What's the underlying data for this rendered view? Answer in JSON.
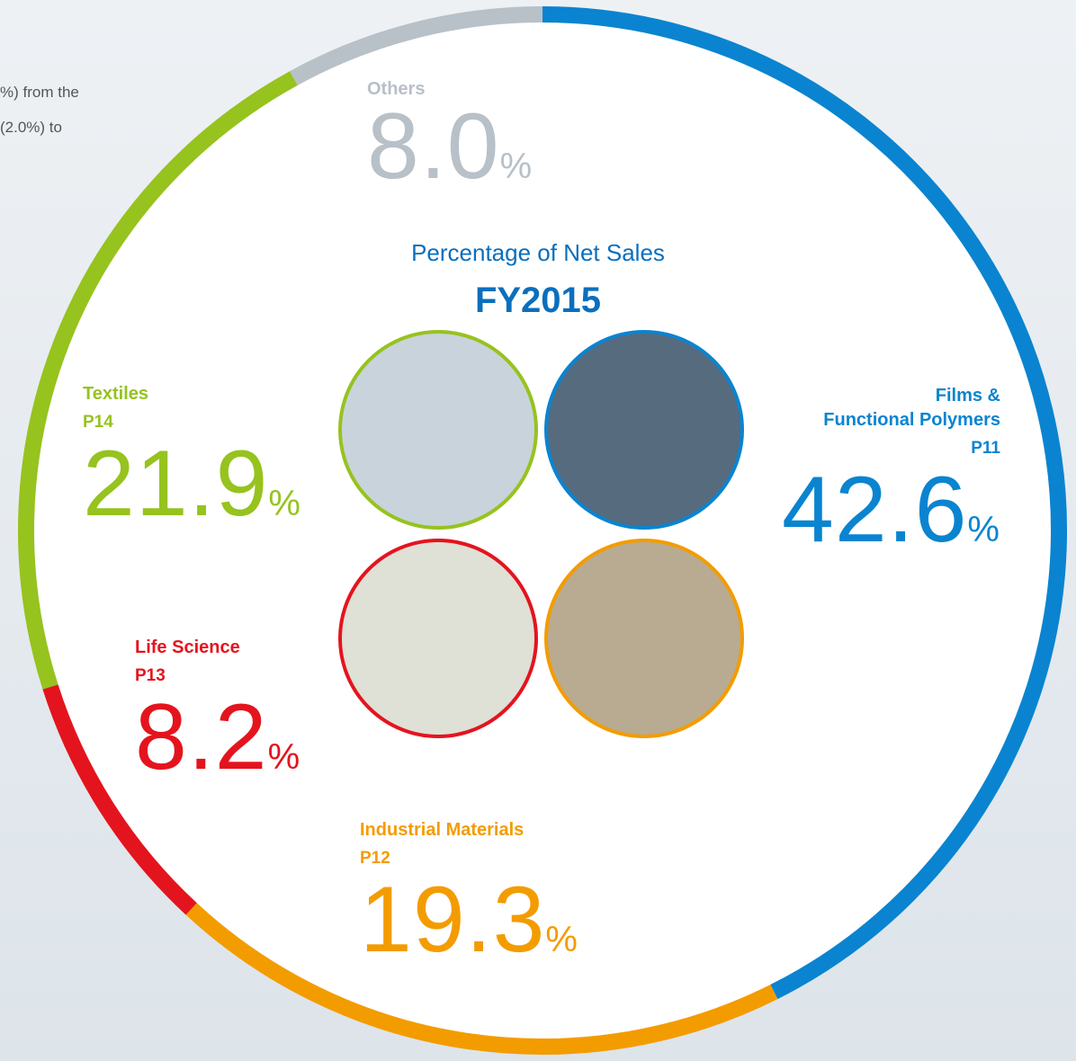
{
  "page_text": [
    "%) from the",
    "(2.0%) to"
  ],
  "chart_data": {
    "type": "pie",
    "donut": true,
    "subtitle": "Percentage of Net Sales",
    "title": "FY2015",
    "categories": [
      "Films &\nFunctional Polymers",
      "Industrial Materials",
      "Life Science",
      "Textiles",
      "Others"
    ],
    "page_refs": [
      "P11",
      "P12",
      "P13",
      "P14",
      null
    ],
    "values": [
      42.6,
      19.3,
      8.2,
      21.9,
      8.0
    ],
    "value_labels": [
      "42.6",
      "19.3",
      "8.2",
      "21.9",
      "8.0"
    ],
    "value_unit": "%",
    "colors": [
      "#0a84d0",
      "#f39c00",
      "#e4141e",
      "#96c31e",
      "#b8c0c8"
    ]
  }
}
